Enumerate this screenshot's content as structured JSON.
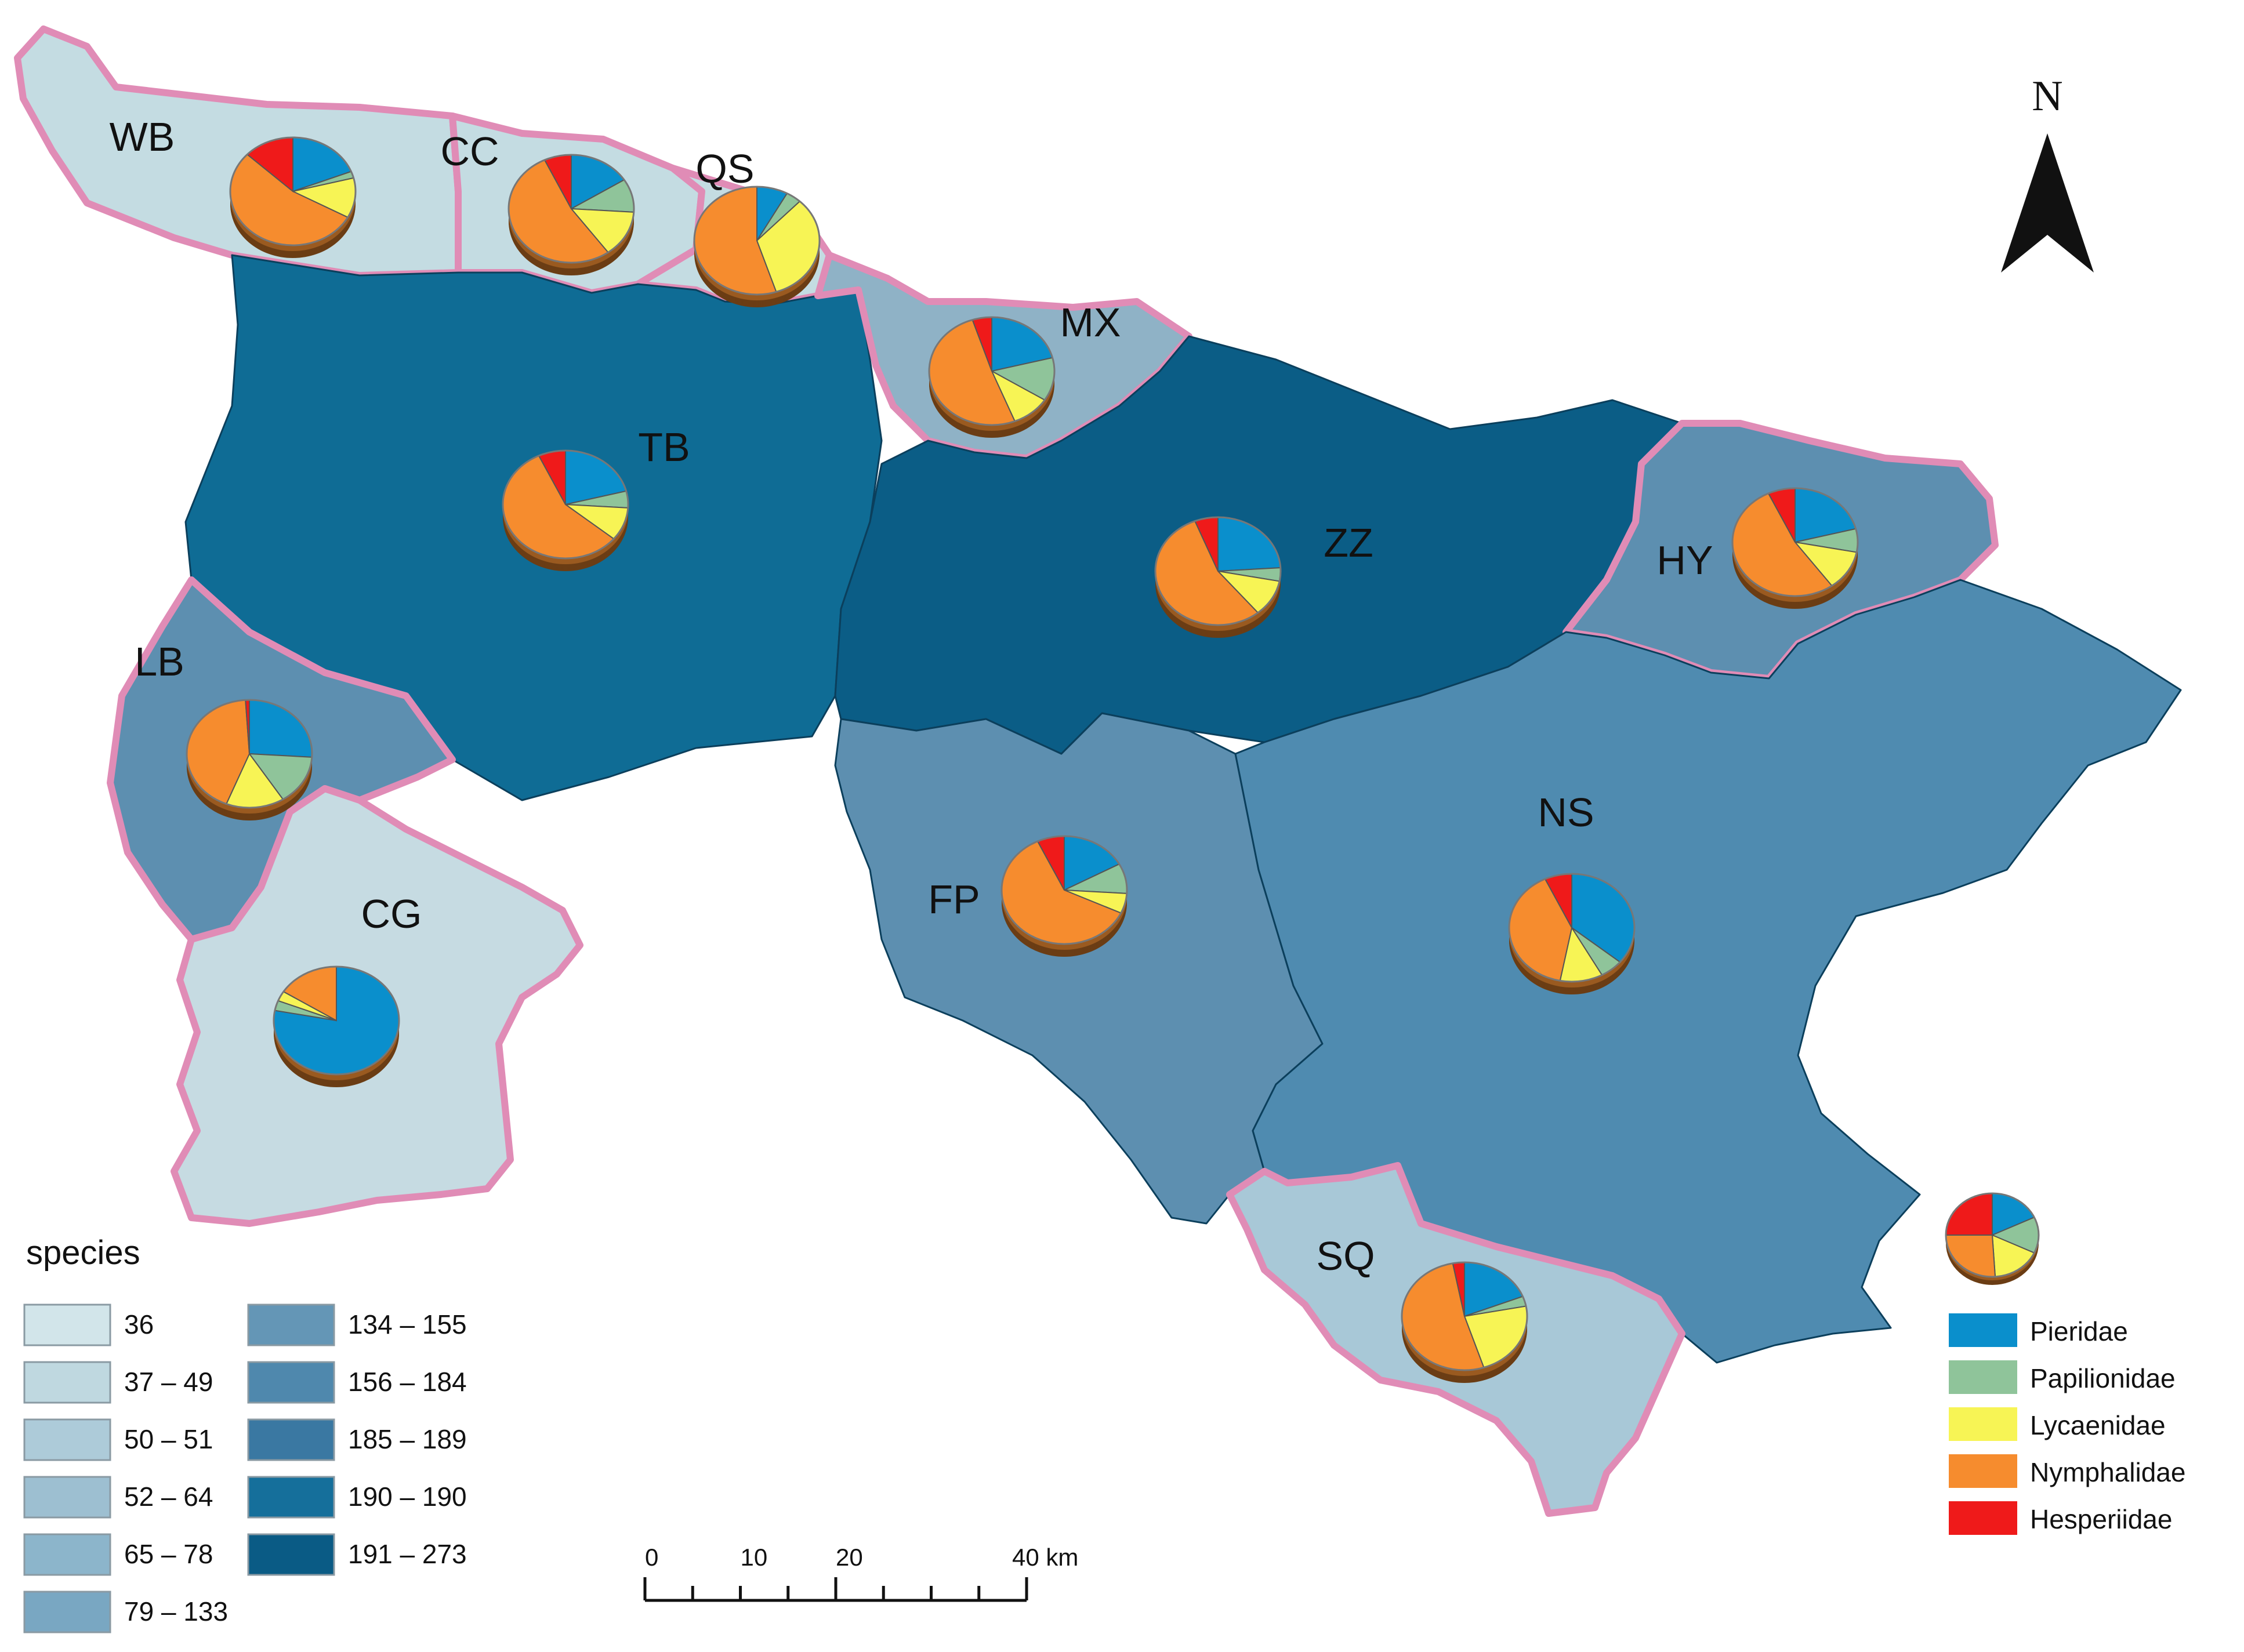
{
  "colors": {
    "Pieridae": "#0a8fcc",
    "Papilionidae": "#8fc49a",
    "Lycaenidae": "#f7f455",
    "Nymphalidae": "#f68c2e",
    "Hesperiidae": "#ef1a1a",
    "border": "#e08cb6"
  },
  "families": [
    "Pieridae",
    "Papilionidae",
    "Lycaenidae",
    "Nymphalidae",
    "Hesperiidae"
  ],
  "regions": [
    {
      "code": "WB",
      "class": 1,
      "fill": "#c4dce2",
      "pie": [
        19,
        2,
        12,
        54,
        13
      ]
    },
    {
      "code": "CC",
      "class": 1,
      "fill": "#c4dce2",
      "pie": [
        16,
        10,
        14,
        53,
        7
      ]
    },
    {
      "code": "QS",
      "class": 1,
      "fill": "#c4dce2",
      "pie": [
        8,
        4,
        33,
        55,
        0
      ]
    },
    {
      "code": "MX",
      "class": 4,
      "fill": "#8fb2c6",
      "pie": [
        21,
        13,
        10,
        51,
        5
      ]
    },
    {
      "code": "TB",
      "class": 8,
      "fill": "#0f6c95",
      "pie": [
        21,
        5,
        10,
        57,
        7
      ]
    },
    {
      "code": "ZZ",
      "class": 9,
      "fill": "#0b5d86",
      "pie": [
        24,
        4,
        11,
        55,
        6
      ]
    },
    {
      "code": "HY",
      "class": 5,
      "fill": "#5d8fb0",
      "pie": [
        21,
        7,
        12,
        53,
        7
      ]
    },
    {
      "code": "LB",
      "class": 5,
      "fill": "#5d8fb0",
      "pie": [
        26,
        15,
        15,
        43,
        1
      ]
    },
    {
      "code": "CG",
      "class": 0,
      "fill": "#c6dbe2",
      "pie": [
        78,
        3,
        3,
        16,
        0
      ]
    },
    {
      "code": "FP",
      "class": 5,
      "fill": "#5d8fb0",
      "pie": [
        17,
        9,
        6,
        61,
        7
      ]
    },
    {
      "code": "NS",
      "class": 6,
      "fill": "#4f8bb0",
      "pie": [
        36,
        6,
        11,
        40,
        7
      ]
    },
    {
      "code": "SQ",
      "class": 2,
      "fill": "#a8c8d7",
      "pie": [
        19,
        3,
        23,
        52,
        3
      ]
    }
  ],
  "legend": {
    "title": "species",
    "classes": [
      {
        "label": "36",
        "fill": "#d2e5ea"
      },
      {
        "label": "37 – 49",
        "fill": "#bfd8e0"
      },
      {
        "label": "50 – 51",
        "fill": "#adcbd9"
      },
      {
        "label": "52 – 64",
        "fill": "#9dbfd1"
      },
      {
        "label": "65 – 78",
        "fill": "#8cb5cb"
      },
      {
        "label": "79 – 133",
        "fill": "#79a7c2"
      },
      {
        "label": "134 – 155",
        "fill": "#6496b6"
      },
      {
        "label": "156 – 184",
        "fill": "#4f88ad"
      },
      {
        "label": "185 – 189",
        "fill": "#3a78a2"
      },
      {
        "label": "190 – 190",
        "fill": "#156f9b"
      },
      {
        "label": "191 – 273",
        "fill": "#0a5b85"
      }
    ],
    "sample_pie": [
      18,
      14,
      17,
      26,
      25
    ]
  },
  "north_label": "N",
  "scale": {
    "ticks": [
      "0",
      "10",
      "20",
      "40 km"
    ]
  }
}
